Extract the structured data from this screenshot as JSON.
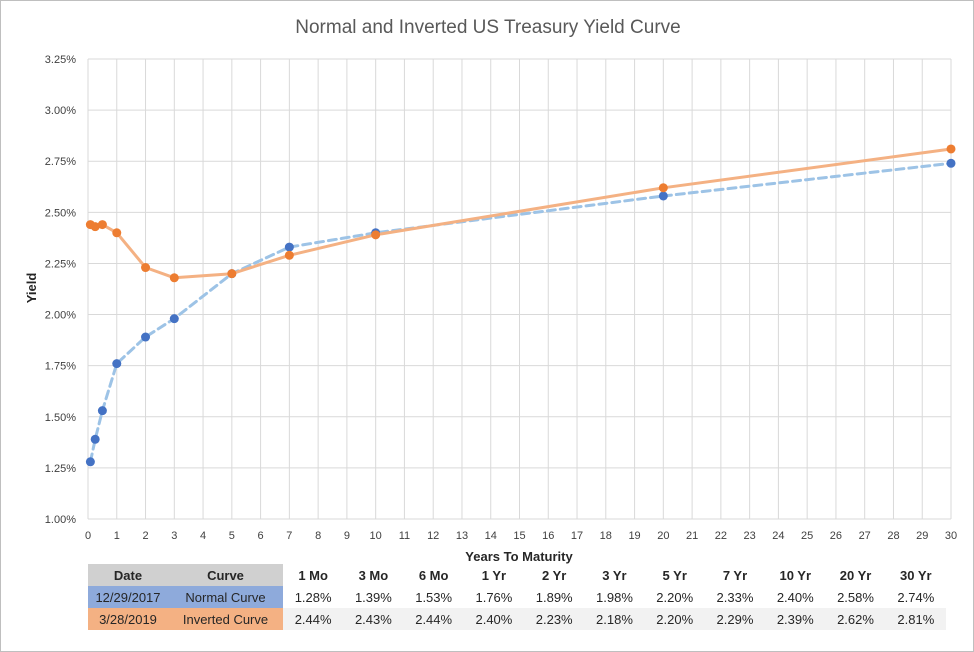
{
  "chart_data": {
    "type": "line",
    "title": "Normal and Inverted US Treasury Yield Curve",
    "xlabel": "Years To Maturity",
    "ylabel": "Yield",
    "xlim": [
      0,
      30
    ],
    "ylim": [
      1.0,
      3.25
    ],
    "x_ticks": [
      0,
      1,
      2,
      3,
      4,
      5,
      6,
      7,
      8,
      9,
      10,
      11,
      12,
      13,
      14,
      15,
      16,
      17,
      18,
      19,
      20,
      21,
      22,
      23,
      24,
      25,
      26,
      27,
      28,
      29,
      30
    ],
    "y_ticks": [
      "1.00%",
      "1.25%",
      "1.50%",
      "1.75%",
      "2.00%",
      "2.25%",
      "2.50%",
      "2.75%",
      "3.00%",
      "3.25%"
    ],
    "grid": true,
    "legend": "none",
    "series": [
      {
        "label": "Normal Curve",
        "color": "#4472c4",
        "line_color": "#9dc3e6",
        "dashed": true,
        "x": [
          0.083,
          0.25,
          0.5,
          1,
          2,
          3,
          5,
          7,
          10,
          20,
          30
        ],
        "y": [
          1.28,
          1.39,
          1.53,
          1.76,
          1.89,
          1.98,
          2.2,
          2.33,
          2.4,
          2.58,
          2.74
        ]
      },
      {
        "label": "Inverted Curve",
        "color": "#ed7d31",
        "line_color": "#f4b183",
        "dashed": false,
        "x": [
          0.083,
          0.25,
          0.5,
          1,
          2,
          3,
          5,
          7,
          10,
          20,
          30
        ],
        "y": [
          2.44,
          2.43,
          2.44,
          2.4,
          2.23,
          2.18,
          2.2,
          2.29,
          2.39,
          2.62,
          2.81
        ]
      }
    ]
  },
  "table": {
    "headers": {
      "date": "Date",
      "curve": "Curve",
      "tenors": [
        "1 Mo",
        "3 Mo",
        "6 Mo",
        "1 Yr",
        "2 Yr",
        "3 Yr",
        "5 Yr",
        "7 Yr",
        "10 Yr",
        "20 Yr",
        "30 Yr"
      ]
    },
    "rows": [
      {
        "date": "12/29/2017",
        "curve": "Normal Curve",
        "values": [
          "1.28%",
          "1.39%",
          "1.53%",
          "1.76%",
          "1.89%",
          "1.98%",
          "2.20%",
          "2.33%",
          "2.40%",
          "2.58%",
          "2.74%"
        ]
      },
      {
        "date": "3/28/2019",
        "curve": "Inverted Curve",
        "values": [
          "2.44%",
          "2.43%",
          "2.44%",
          "2.40%",
          "2.23%",
          "2.18%",
          "2.20%",
          "2.29%",
          "2.39%",
          "2.62%",
          "2.81%"
        ]
      }
    ]
  }
}
